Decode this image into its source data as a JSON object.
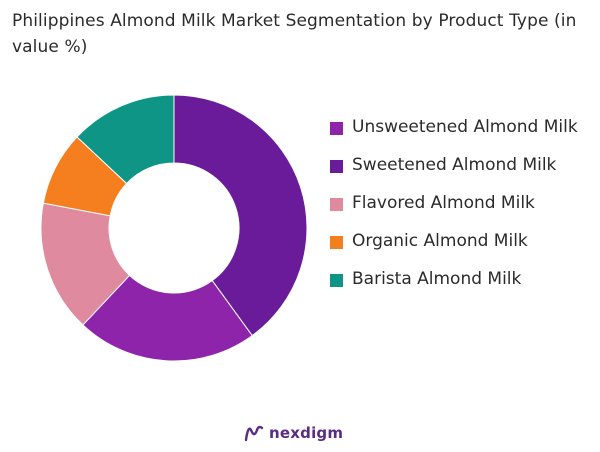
{
  "title": "Philippines Almond Milk Market Segmentation by Product Type (in value %)",
  "brand": {
    "name": "nexdigm",
    "color": "#5a2d82"
  },
  "chart_data": {
    "type": "pie",
    "style": "donut",
    "legend_position": "right",
    "categories": [
      "Unsweetened Almond Milk",
      "Sweetened Almond Milk",
      "Flavored Almond Milk",
      "Organic Almond Milk",
      "Barista Almond Milk"
    ],
    "values": [
      40,
      22,
      16,
      9,
      13
    ],
    "colors": [
      "#6a1b9a",
      "#8e24aa",
      "#e08a9f",
      "#f57f1f",
      "#0e9586"
    ],
    "legend_colors": [
      "#8e24aa",
      "#6a1b9a",
      "#e08a9f",
      "#f57f1f",
      "#0e9586"
    ]
  }
}
